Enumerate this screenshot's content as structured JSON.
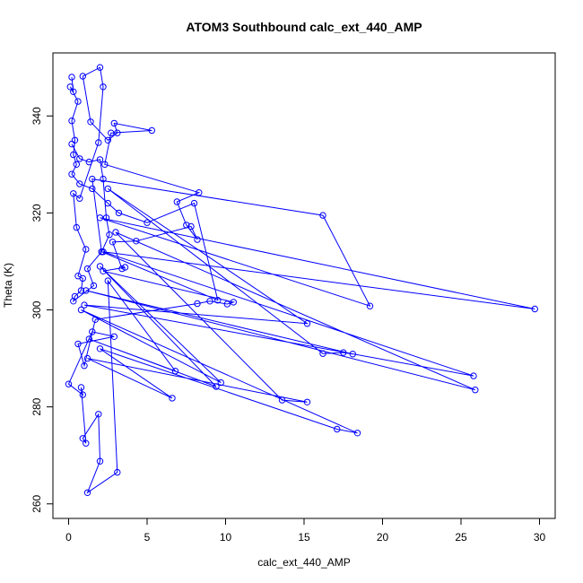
{
  "chart_data": {
    "type": "scatter",
    "title": "ATOM3 Southbound calc_ext_440_AMP",
    "xlabel": "calc_ext_440_AMP",
    "ylabel": "Theta (K)",
    "xlim": [
      -1,
      31
    ],
    "ylim": [
      257,
      353
    ],
    "x_ticks": [
      0,
      5,
      10,
      15,
      20,
      25,
      30
    ],
    "x_tick_labels": [
      "0",
      "5",
      "10",
      "15",
      "20",
      "25",
      "30"
    ],
    "y_ticks": [
      260,
      280,
      300,
      320,
      340
    ],
    "y_tick_labels": [
      "260",
      "280",
      "300",
      "320",
      "340"
    ],
    "grid": false,
    "marker": "open-circle",
    "connected": true,
    "series": [
      {
        "color": "#0000ff",
        "points": [
          [
            0.2,
            348.0
          ],
          [
            0.3,
            345.0
          ],
          [
            0.1,
            346.0
          ],
          [
            0.6,
            343.0
          ],
          [
            0.2,
            339.0
          ],
          [
            0.4,
            335.0
          ],
          [
            0.3,
            332.0
          ],
          [
            0.5,
            330.0
          ],
          [
            0.2,
            328.0
          ],
          [
            0.7,
            326.0
          ],
          [
            1.5,
            325.0
          ],
          [
            2.5,
            322.0
          ],
          [
            3.2,
            320.0
          ],
          [
            5.0,
            318.0
          ],
          [
            8.0,
            322.0
          ],
          [
            9.5,
            302.0
          ],
          [
            2.1,
            312.0
          ],
          [
            1.5,
            327.0
          ],
          [
            16.2,
            319.5
          ],
          [
            19.2,
            300.8
          ],
          [
            2.0,
            319.0
          ],
          [
            29.7,
            300.2
          ],
          [
            2.2,
            312.0
          ],
          [
            25.8,
            286.4
          ],
          [
            1.0,
            301.0
          ],
          [
            15.2,
            297.2
          ],
          [
            2.5,
            325.0
          ],
          [
            16.2,
            291.0
          ],
          [
            17.5,
            291.2
          ],
          [
            18.1,
            290.9
          ],
          [
            1.1,
            304.0
          ],
          [
            25.9,
            283.5
          ],
          [
            3.0,
            316.0
          ],
          [
            13.6,
            281.4
          ],
          [
            15.2,
            281.0
          ],
          [
            1.2,
            290.0
          ],
          [
            6.6,
            281.8
          ],
          [
            2.0,
            292.0
          ],
          [
            17.1,
            275.4
          ],
          [
            18.4,
            274.6
          ],
          [
            0.8,
            300.0
          ],
          [
            9.7,
            285.0
          ],
          [
            2.0,
            309.0
          ],
          [
            9.4,
            284.2
          ],
          [
            1.3,
            294.0
          ],
          [
            6.8,
            287.4
          ],
          [
            2.5,
            306.0
          ],
          [
            3.1,
            266.5
          ],
          [
            1.2,
            262.3
          ],
          [
            2.0,
            268.8
          ],
          [
            1.9,
            278.5
          ],
          [
            0.9,
            273.5
          ],
          [
            1.1,
            272.5
          ],
          [
            0.8,
            284.0
          ],
          [
            0.9,
            282.5
          ],
          [
            0.0,
            284.7
          ],
          [
            1.5,
            295.5
          ],
          [
            2.9,
            294.5
          ],
          [
            0.6,
            293.0
          ],
          [
            1.0,
            288.5
          ],
          [
            1.7,
            298.0
          ],
          [
            8.2,
            301.3
          ],
          [
            9.0,
            301.8
          ],
          [
            10.1,
            301.2
          ],
          [
            10.5,
            301.6
          ],
          [
            2.2,
            308.0
          ],
          [
            3.6,
            308.8
          ],
          [
            3.4,
            308.5
          ],
          [
            2.8,
            314.0
          ],
          [
            4.3,
            314.2
          ],
          [
            7.8,
            317.2
          ],
          [
            8.2,
            314.5
          ],
          [
            7.5,
            317.5
          ],
          [
            6.9,
            322.3
          ],
          [
            8.3,
            324.2
          ],
          [
            2.3,
            330.0
          ],
          [
            2.7,
            336.5
          ],
          [
            5.3,
            337.0
          ],
          [
            2.9,
            338.5
          ],
          [
            3.1,
            336.5
          ],
          [
            2.5,
            335.0
          ],
          [
            1.4,
            338.8
          ],
          [
            0.9,
            348.2
          ],
          [
            2.0,
            350.0
          ],
          [
            2.2,
            346.0
          ],
          [
            1.9,
            334.5
          ],
          [
            0.7,
            323.0
          ],
          [
            0.3,
            324.0
          ],
          [
            0.5,
            317.0
          ],
          [
            1.1,
            312.5
          ],
          [
            0.6,
            307.0
          ],
          [
            0.9,
            306.5
          ],
          [
            0.8,
            304.0
          ],
          [
            0.4,
            302.8
          ],
          [
            0.3,
            301.8
          ],
          [
            1.6,
            305.0
          ],
          [
            1.2,
            308.5
          ],
          [
            2.1,
            312.0
          ],
          [
            2.6,
            315.5
          ],
          [
            2.4,
            319.0
          ],
          [
            2.2,
            327.0
          ],
          [
            2.0,
            331.0
          ],
          [
            1.3,
            330.5
          ],
          [
            0.7,
            331.2
          ],
          [
            0.2,
            334.2
          ]
        ]
      }
    ]
  }
}
